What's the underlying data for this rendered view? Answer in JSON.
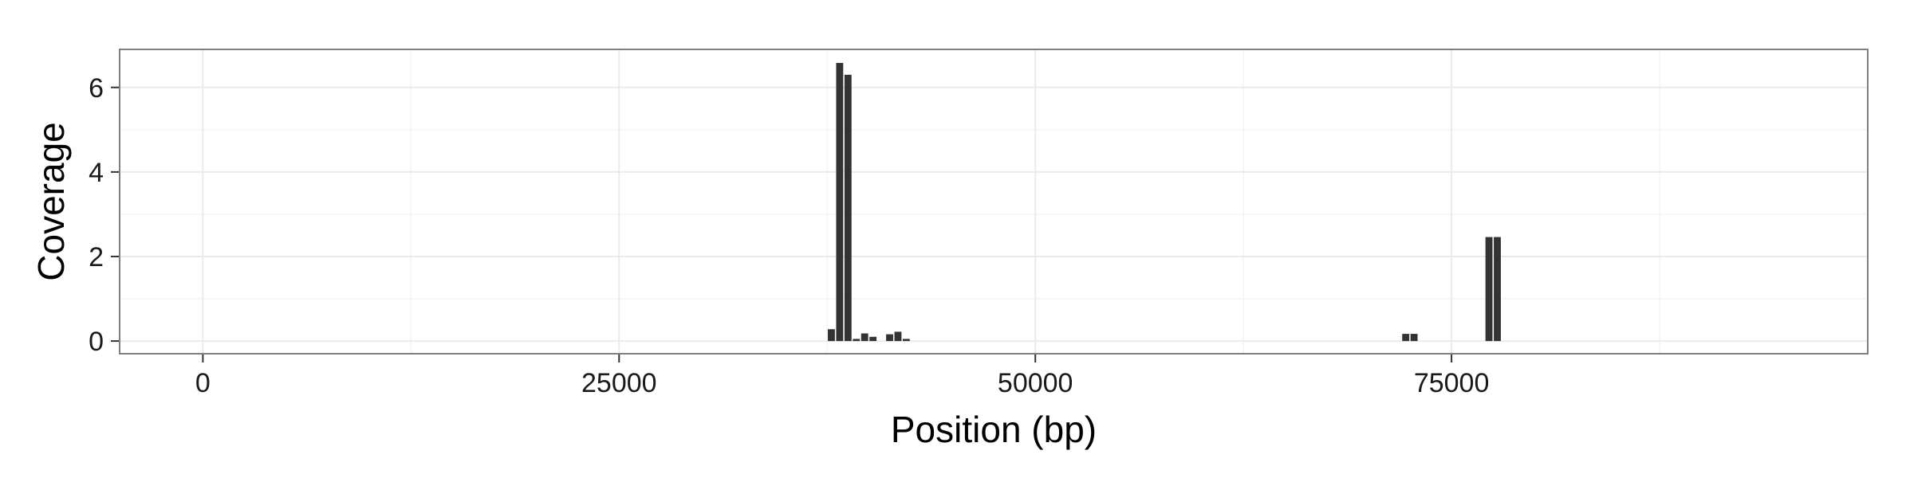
{
  "chart_data": {
    "type": "bar",
    "xlabel": "Position (bp)",
    "ylabel": "Coverage",
    "xlim": [
      -5000,
      100000
    ],
    "ylim": [
      -0.3,
      6.9
    ],
    "x_ticks": [
      0,
      25000,
      50000,
      75000
    ],
    "x_tick_labels": [
      "0",
      "25000",
      "50000",
      "75000"
    ],
    "y_ticks": [
      0,
      2,
      4,
      6
    ],
    "y_tick_labels": [
      "0",
      "2",
      "4",
      "6"
    ],
    "bin_width": 500,
    "grid": true,
    "legend": "none",
    "bar_color": "#333333",
    "panel_background": "#ffffff",
    "grid_color": "#ebebeb",
    "border_color": "#7f7f7f",
    "series": [
      {
        "x": [
          37750,
          38250,
          38750,
          39250,
          39750,
          40250,
          41250,
          41750,
          42250,
          72250,
          72750,
          77250,
          77750
        ],
        "values": [
          0.28,
          6.58,
          6.3,
          0.05,
          0.18,
          0.1,
          0.16,
          0.22,
          0.05,
          0.17,
          0.17,
          2.46,
          2.46
        ]
      }
    ]
  }
}
